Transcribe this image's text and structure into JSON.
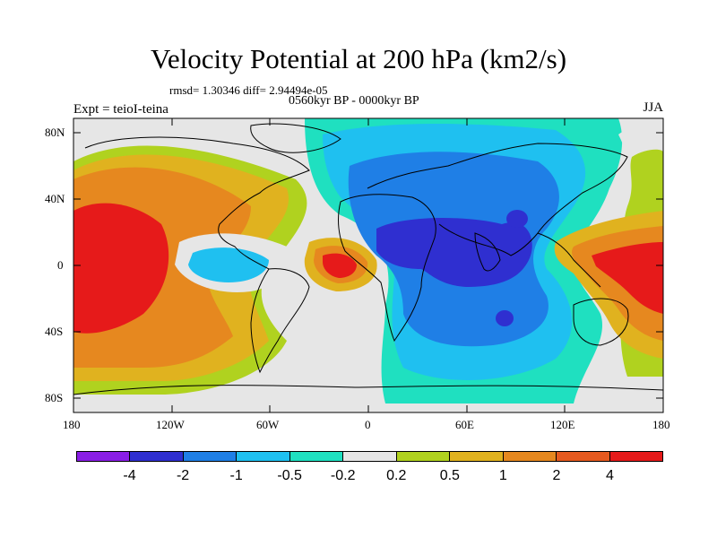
{
  "title": "Velocity Potential at 200 hPa (km2/s)",
  "stats": "rmsd= 1.30346 diff= 2.94494e-05",
  "subtitle": "0560kyr BP - 0000kyr BP",
  "experiment": "Expt = teioI-teina",
  "season": "JJA",
  "y_ticks": [
    "80N",
    "40N",
    "0",
    "40S",
    "80S"
  ],
  "x_ticks": [
    "180",
    "120W",
    "60W",
    "0",
    "60E",
    "120E",
    "180"
  ],
  "colorbar": {
    "colors": [
      "#8a1ee6",
      "#2f2fd0",
      "#1f7fe6",
      "#1fc0f0",
      "#1fe0c0",
      "#e6e6e6",
      "#b0d21f",
      "#e0b21f",
      "#e6881f",
      "#e65a1f",
      "#e61a1a"
    ],
    "labels": [
      "-4",
      "-2",
      "-1",
      "-0.5",
      "-0.2",
      "0.2",
      "0.5",
      "1",
      "2",
      "4"
    ]
  },
  "map_colors": {
    "ocean_neutral": "#e6e6e6",
    "cyan_weak": "#1fe0c0",
    "cyan": "#1fc0f0",
    "blue": "#1f7fe6",
    "deep_blue": "#2f2fd0",
    "yellow_green": "#b0d21f",
    "yellow": "#e0b21f",
    "orange": "#e6881f",
    "red_orange": "#e65a1f",
    "red": "#e61a1a"
  }
}
